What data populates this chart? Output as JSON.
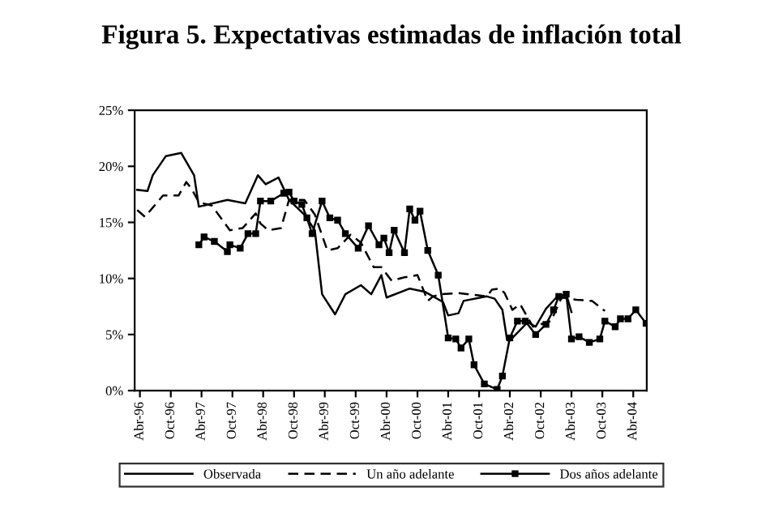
{
  "chart_data": {
    "type": "line",
    "title": "Figura 5. Expectativas estimadas de inflación total",
    "xlim": [
      "1996-03-01",
      "2004-06-20"
    ],
    "ylim": [
      0,
      25
    ],
    "xticks": [
      {
        "value": "1996-04-01",
        "label": "Abr-96"
      },
      {
        "value": "1996-10-01",
        "label": "Oct-96"
      },
      {
        "value": "1997-04-01",
        "label": "Abr-97"
      },
      {
        "value": "1997-10-01",
        "label": "Oct-97"
      },
      {
        "value": "1998-04-01",
        "label": "Abr-98"
      },
      {
        "value": "1998-10-01",
        "label": "Oct-98"
      },
      {
        "value": "1999-04-01",
        "label": "Abr-99"
      },
      {
        "value": "1999-10-01",
        "label": "Oct-99"
      },
      {
        "value": "2000-04-01",
        "label": "Abr-00"
      },
      {
        "value": "2000-10-01",
        "label": "Oct-00"
      },
      {
        "value": "2001-04-01",
        "label": "Abr-01"
      },
      {
        "value": "2001-10-01",
        "label": "Oct-01"
      },
      {
        "value": "2002-04-01",
        "label": "Abr-02"
      },
      {
        "value": "2002-10-01",
        "label": "Oct-02"
      },
      {
        "value": "2003-04-01",
        "label": "Abr-03"
      },
      {
        "value": "2003-10-01",
        "label": "Oct-03"
      },
      {
        "value": "2004-04-01",
        "label": "Abr-04"
      }
    ],
    "yticks": [
      {
        "value": 0,
        "label": "0%"
      },
      {
        "value": 5,
        "label": "5%"
      },
      {
        "value": 10,
        "label": "10%"
      },
      {
        "value": 15,
        "label": "15%"
      },
      {
        "value": 20,
        "label": "20%"
      },
      {
        "value": 25,
        "label": "25%"
      }
    ],
    "grid": false,
    "legend": "bottom",
    "series": [
      {
        "name": "Observada",
        "color": "#000000",
        "line_style": "solid",
        "marker": "none",
        "x": [
          "1996-03-16",
          "1996-05-16",
          "1996-06-16",
          "1996-09-01",
          "1996-12-01",
          "1997-02-16",
          "1997-03-16",
          "1997-09-01",
          "1997-12-16",
          "1998-03-01",
          "1998-04-16",
          "1998-07-01",
          "1998-09-01",
          "1998-12-01",
          "1999-02-01",
          "1999-03-16",
          "1999-06-01",
          "1999-08-01",
          "1999-11-01",
          "2000-01-01",
          "2000-03-01",
          "2000-04-01",
          "2000-08-16",
          "2000-11-16",
          "2001-03-01",
          "2001-04-01",
          "2001-06-01",
          "2001-07-01",
          "2001-11-16",
          "2002-01-01",
          "2002-02-16",
          "2002-03-16",
          "2002-04-16",
          "2002-07-16",
          "2002-09-01",
          "2002-11-01",
          "2003-01-01",
          "2003-03-01",
          "2003-04-01"
        ],
        "values": [
          17.9,
          17.8,
          19.2,
          20.9,
          21.2,
          19.2,
          16.4,
          17.0,
          16.7,
          19.2,
          18.4,
          19.0,
          17.0,
          15.7,
          14.3,
          8.6,
          6.8,
          8.6,
          9.4,
          8.6,
          10.3,
          8.3,
          9.1,
          8.8,
          7.9,
          6.7,
          6.9,
          8.0,
          8.4,
          8.2,
          7.2,
          4.5,
          4.7,
          6.1,
          5.7,
          7.3,
          8.3,
          8.6,
          7.0
        ]
      },
      {
        "name": "Un año adelante",
        "color": "#000000",
        "line_style": "dashed",
        "marker": "none",
        "x": [
          "1996-03-16",
          "1996-05-01",
          "1996-08-16",
          "1996-11-16",
          "1997-01-01",
          "1997-02-01",
          "1997-03-16",
          "1997-06-01",
          "1997-09-16",
          "1997-12-01",
          "1998-02-16",
          "1998-03-16",
          "1998-05-01",
          "1998-07-16",
          "1998-09-01",
          "1998-12-01",
          "1999-02-01",
          "1999-04-16",
          "1999-06-16",
          "1999-09-01",
          "1999-11-01",
          "2000-01-16",
          "2000-03-01",
          "2000-05-01",
          "2000-07-16",
          "2000-10-01",
          "2000-12-01",
          "2001-01-01",
          "2001-02-16",
          "2001-06-01",
          "2001-11-16",
          "2001-12-16",
          "2002-02-01",
          "2002-03-01",
          "2002-04-16",
          "2002-06-01",
          "2002-08-16",
          "2002-12-01",
          "2003-02-01",
          "2003-05-01",
          "2003-08-01",
          "2003-10-16"
        ],
        "values": [
          16.1,
          15.5,
          17.4,
          17.4,
          18.6,
          18.0,
          16.8,
          16.5,
          14.3,
          14.5,
          15.8,
          14.9,
          14.3,
          14.5,
          17.0,
          17.0,
          15.7,
          12.5,
          12.7,
          13.9,
          13.2,
          11.0,
          11.0,
          9.8,
          10.1,
          10.3,
          8.0,
          8.4,
          8.6,
          8.7,
          8.4,
          9.0,
          9.1,
          8.7,
          7.2,
          7.7,
          5.7,
          6.2,
          8.3,
          8.1,
          8.0,
          7.1
        ]
      },
      {
        "name": "Dos años adelante",
        "color": "#000000",
        "line_style": "solid",
        "marker": "square",
        "x": [
          "1997-03-16",
          "1997-04-16",
          "1997-06-16",
          "1997-09-01",
          "1997-09-16",
          "1997-11-16",
          "1998-01-01",
          "1998-02-16",
          "1998-03-16",
          "1998-05-16",
          "1998-08-01",
          "1998-09-01",
          "1998-10-01",
          "1998-11-16",
          "1998-12-16",
          "1999-01-16",
          "1999-03-16",
          "1999-05-01",
          "1999-06-16",
          "1999-08-01",
          "1999-10-16",
          "1999-12-16",
          "2000-02-16",
          "2000-03-16",
          "2000-04-16",
          "2000-05-16",
          "2000-07-16",
          "2000-08-16",
          "2000-09-16",
          "2000-10-16",
          "2000-12-01",
          "2001-02-01",
          "2001-04-01",
          "2001-05-16",
          "2001-06-16",
          "2001-08-01",
          "2001-09-01",
          "2001-11-01",
          "2002-01-16",
          "2002-02-16",
          "2002-04-01",
          "2002-05-16",
          "2002-07-01",
          "2002-09-01",
          "2002-11-01",
          "2002-12-16",
          "2003-01-16",
          "2003-03-01",
          "2003-04-01",
          "2003-05-16",
          "2003-07-16",
          "2003-09-16",
          "2003-10-16",
          "2003-12-16",
          "2004-01-16",
          "2004-03-01",
          "2004-04-16",
          "2004-06-16"
        ],
        "values": [
          13.0,
          13.7,
          13.3,
          12.4,
          13.0,
          12.7,
          14.0,
          14.0,
          16.9,
          16.9,
          17.6,
          17.7,
          16.9,
          16.6,
          15.4,
          14.0,
          16.9,
          15.4,
          15.2,
          14.0,
          12.7,
          14.7,
          13.0,
          13.6,
          12.3,
          14.3,
          12.3,
          16.2,
          15.2,
          16.0,
          12.5,
          10.3,
          4.7,
          4.6,
          3.8,
          4.6,
          2.3,
          0.6,
          0.1,
          1.3,
          4.7,
          6.2,
          6.2,
          5.0,
          5.9,
          7.2,
          8.4,
          8.6,
          4.6,
          4.8,
          4.3,
          4.6,
          6.2,
          5.7,
          6.4,
          6.4,
          7.2,
          6.0
        ]
      }
    ]
  }
}
